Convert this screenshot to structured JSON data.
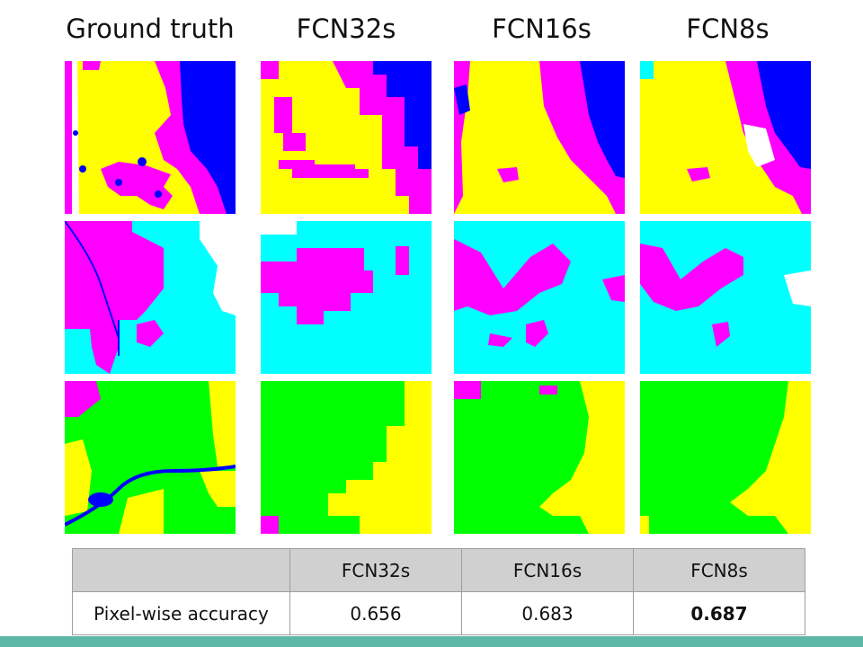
{
  "columns": {
    "gt": "Ground truth",
    "fcn32": "FCN32s",
    "fcn16": "FCN16s",
    "fcn8": "FCN8s"
  },
  "table": {
    "headers": [
      "",
      "FCN32s",
      "FCN16s",
      "FCN8s"
    ],
    "row_label": "Pixel-wise accuracy",
    "values": [
      "0.656",
      "0.683",
      "0.687"
    ],
    "best_index": 2
  },
  "colors": {
    "yellow": "#ffff00",
    "magenta": "#ff00ff",
    "blue": "#0000ff",
    "cyan": "#00ffff",
    "green": "#00ff00",
    "white": "#ffffff",
    "accent_bar": "#5eb8a8"
  }
}
